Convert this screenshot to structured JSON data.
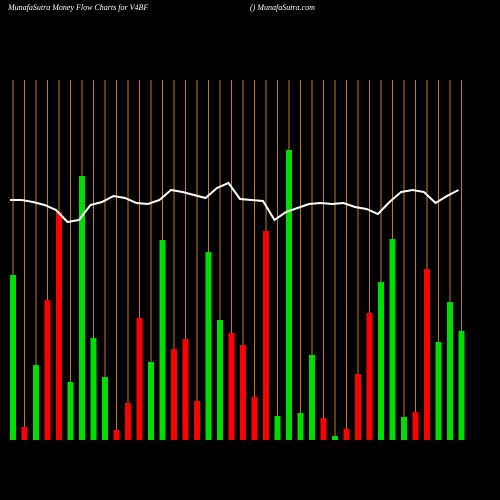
{
  "chart_data": {
    "type": "bar",
    "title": "MunafaSutra  Money Flow  Charts for V4BF",
    "subtitle": "() MunafaSutra.com",
    "ylim": [
      0,
      360
    ],
    "grid_color": "#c8781e",
    "line_color": "#ffffff",
    "series": [
      {
        "name": "Money Flow",
        "values": [
          165,
          13,
          75,
          140,
          228,
          58,
          264,
          102,
          63,
          10,
          37,
          122,
          78,
          200,
          91,
          101,
          39,
          188,
          120,
          107,
          95,
          43,
          209,
          24,
          290,
          27,
          85,
          22,
          4,
          11,
          66,
          127,
          158,
          201,
          23,
          28,
          171,
          98,
          138,
          109
        ],
        "colors": [
          "#00dd00",
          "#ff0000",
          "#00dd00",
          "#ff0000",
          "#ff0000",
          "#00dd00",
          "#00dd00",
          "#00dd00",
          "#00dd00",
          "#ff0000",
          "#ff0000",
          "#ff0000",
          "#00dd00",
          "#00dd00",
          "#ff0000",
          "#ff0000",
          "#ff0000",
          "#00dd00",
          "#00dd00",
          "#ff0000",
          "#ff0000",
          "#ff0000",
          "#ff0000",
          "#00dd00",
          "#00dd00",
          "#00dd00",
          "#00dd00",
          "#ff0000",
          "#00dd00",
          "#ff0000",
          "#ff0000",
          "#ff0000",
          "#00dd00",
          "#00dd00",
          "#00dd00",
          "#ff0000",
          "#ff0000",
          "#00dd00",
          "#00dd00",
          "#00dd00"
        ]
      },
      {
        "name": "Price",
        "type": "line",
        "values": [
          240,
          240,
          238,
          235,
          230,
          218,
          220,
          235,
          238,
          244,
          242,
          237,
          236,
          240,
          250,
          248,
          245,
          242,
          252,
          257,
          241,
          240,
          239,
          220,
          228,
          232,
          236,
          237,
          236,
          237,
          233,
          231,
          226,
          238,
          248,
          250,
          248,
          237,
          244,
          250
        ]
      }
    ]
  }
}
